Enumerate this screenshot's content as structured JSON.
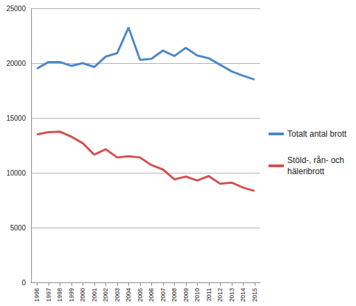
{
  "chart_data": {
    "type": "line",
    "categories": [
      "1996",
      "1997",
      "1998",
      "1999",
      "2000",
      "2001",
      "2002",
      "2003",
      "2004",
      "2005",
      "2006",
      "2007",
      "2008",
      "2009",
      "2010",
      "2011",
      "2012",
      "2013",
      "2014",
      "2015"
    ],
    "series": [
      {
        "name": "Totalt antal brott",
        "color": "#4a86c8",
        "values": [
          19500,
          20100,
          20100,
          19750,
          20000,
          19650,
          20600,
          20900,
          23250,
          20300,
          20400,
          21150,
          20650,
          21400,
          20700,
          20450,
          19850,
          19250,
          18850,
          18500
        ]
      },
      {
        "name": "Stöld-, rån- och häleribrott",
        "color": "#d64d4d",
        "values": [
          13500,
          13700,
          13750,
          13300,
          12700,
          11650,
          12150,
          11400,
          11500,
          11400,
          10700,
          10300,
          9400,
          9650,
          9300,
          9700,
          9000,
          9100,
          8650,
          8350
        ]
      }
    ],
    "ylim": [
      0,
      25000
    ],
    "yticks": [
      0,
      5000,
      10000,
      15000,
      20000,
      25000
    ],
    "grid": true,
    "legend": "right"
  }
}
